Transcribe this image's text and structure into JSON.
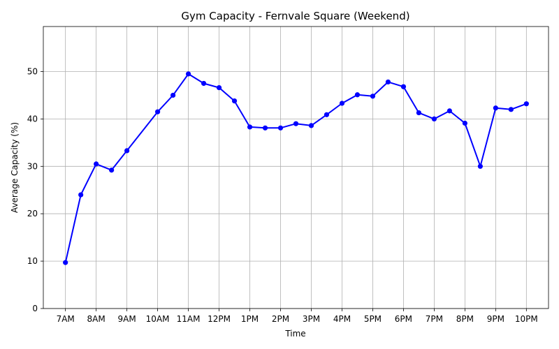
{
  "chart_data": {
    "type": "line",
    "title": "Gym Capacity - Fernvale Square (Weekend)",
    "xlabel": "Time",
    "ylabel": "Average Capacity (%)",
    "ylim": [
      0,
      59.5
    ],
    "yticks": [
      0,
      10,
      20,
      30,
      40,
      50
    ],
    "x_tick_labels": [
      "7AM",
      "8AM",
      "9AM",
      "10AM",
      "11AM",
      "12PM",
      "1PM",
      "2PM",
      "3PM",
      "4PM",
      "5PM",
      "6PM",
      "7PM",
      "8PM",
      "9PM",
      "10PM"
    ],
    "grid": true,
    "line_color": "#0000ff",
    "series": [
      {
        "x": [
          7,
          7.5,
          8,
          8.5,
          9,
          10,
          10.5,
          11,
          11.5,
          12,
          12.5,
          13,
          13.5,
          14,
          14.5,
          15,
          15.5,
          16,
          16.5,
          17,
          17.5,
          18,
          18.5,
          19,
          19.5,
          20,
          20.5,
          21,
          21.5,
          22
        ],
        "values": [
          9.7,
          24.0,
          30.5,
          29.2,
          33.3,
          41.5,
          45.0,
          49.5,
          47.5,
          46.6,
          43.8,
          38.3,
          38.1,
          38.1,
          39.0,
          38.6,
          40.9,
          43.3,
          45.1,
          44.8,
          47.8,
          46.8,
          41.3,
          40.0,
          41.7,
          39.1,
          30.0,
          42.3,
          42.0,
          43.2
        ]
      }
    ]
  }
}
